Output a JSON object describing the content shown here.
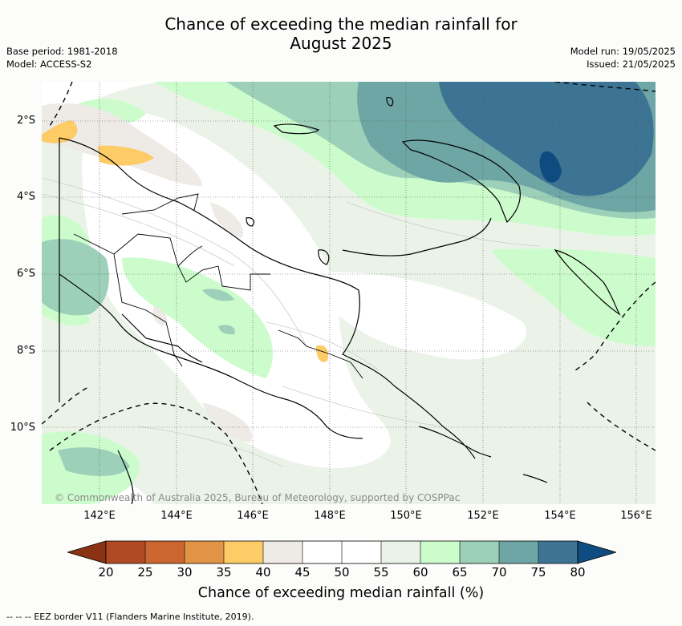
{
  "title_line1": "Chance of exceeding the median rainfall for",
  "title_line2": "August 2025",
  "meta": {
    "base_period": "Base period: 1981-2018",
    "model": "Model: ACCESS-S2",
    "model_run": "Model run: 19/05/2025",
    "issued": "Issued: 21/05/2025"
  },
  "copyright": "© Commonwealth of Australia 2025, Bureau of Meteorology, supported by COSPPac",
  "lat_labels": [
    "2°S",
    "4°S",
    "6°S",
    "8°S",
    "10°S"
  ],
  "lon_labels": [
    "142°E",
    "144°E",
    "146°E",
    "148°E",
    "150°E",
    "152°E",
    "154°E",
    "156°E"
  ],
  "colorbar": {
    "title": "Chance of exceeding median rainfall (%)",
    "tick_labels": [
      "20",
      "25",
      "30",
      "35",
      "40",
      "45",
      "50",
      "55",
      "60",
      "65",
      "70",
      "75",
      "80"
    ],
    "colors": {
      "below_20": "#8a3214",
      "20_25": "#b04a24",
      "25_30": "#cc6630",
      "30_35": "#e29446",
      "35_40": "#fdcc67",
      "40_45": "#eeeae6",
      "45_50": "#ffffff",
      "50_55": "#ffffff",
      "55_60": "#ebf3e9",
      "60_65": "#cdfccc",
      "65_70": "#9cd0b8",
      "70_75": "#6ea5a5",
      "75_80": "#3d7494",
      "above_80": "#0e4b80"
    }
  },
  "footnote": "--  --  -- EEZ border V11 (Flanders Marine Institute, 2019)."
}
